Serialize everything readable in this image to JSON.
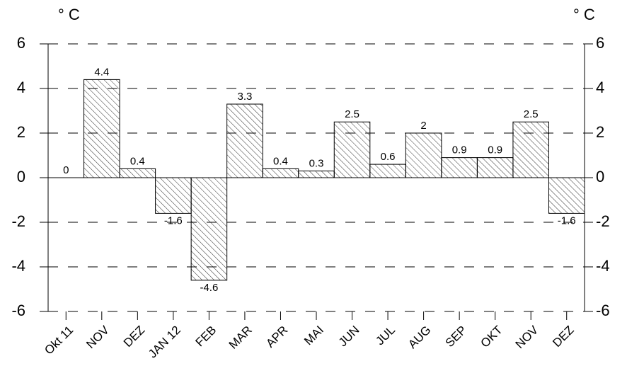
{
  "chart_data": {
    "type": "bar",
    "y_label": "° C",
    "y2_label": "° C",
    "categories": [
      "Okt 11",
      "NOV",
      "DEZ",
      "JAN 12",
      "FEB",
      "MAR",
      "APR",
      "MAI",
      "JUN",
      "JUL",
      "AUG",
      "SEP",
      "OKT",
      "NOV",
      "DEZ"
    ],
    "values": [
      0,
      4.4,
      0.4,
      -1.6,
      -4.6,
      3.3,
      0.4,
      0.3,
      2.5,
      0.6,
      2,
      0.9,
      0.9,
      2.5,
      -1.6
    ],
    "color": "#000000",
    "ylim": [
      -6,
      6
    ],
    "yticks": [
      -6,
      -4,
      -2,
      0,
      2,
      4,
      6
    ],
    "y2lim": [
      -6,
      6
    ],
    "y2ticks": [
      -6,
      -4,
      -2,
      0,
      2,
      4,
      6
    ],
    "grid": true
  }
}
